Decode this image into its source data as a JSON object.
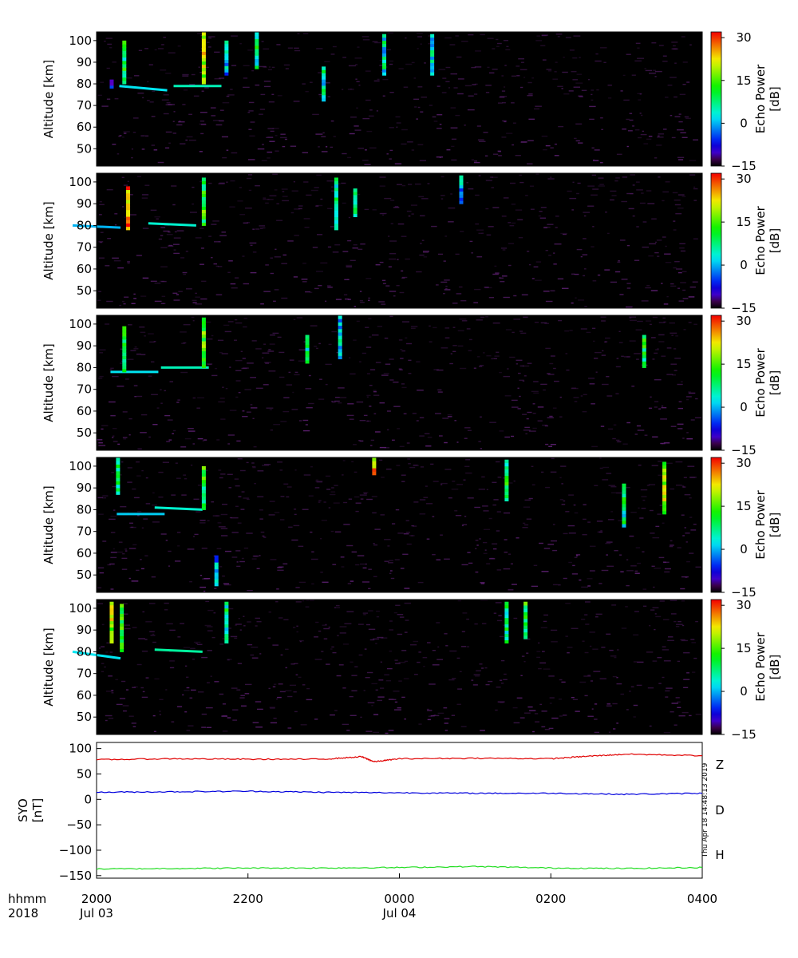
{
  "chart_data": [
    {
      "type": "heatmap",
      "panel": 1,
      "ylabel": "Altitude [km]",
      "yticks": [
        50,
        60,
        70,
        80,
        90,
        100
      ],
      "ylim": [
        42,
        104
      ],
      "colorbar": {
        "label_line1": "Echo Power",
        "label_line2": "[dB]",
        "ticks": [
          -15,
          0,
          15,
          30
        ],
        "range": [
          -15,
          32
        ]
      },
      "echo_layers": [
        {
          "time": "2037",
          "alt_start": 79,
          "alt_end": 77,
          "power_db": 2
        },
        {
          "time": "2120",
          "alt_start": 79,
          "alt_end": 79,
          "power_db": 5
        }
      ],
      "columns": [
        {
          "time": "2012",
          "alt_min": 78,
          "alt_max": 82,
          "power_db": -2
        },
        {
          "time": "2022",
          "alt_min": 80,
          "alt_max": 100,
          "power_db": 12
        },
        {
          "time": "2125",
          "alt_min": 80,
          "alt_max": 104,
          "power_db": 22
        },
        {
          "time": "2143",
          "alt_min": 84,
          "alt_max": 100,
          "power_db": 3
        },
        {
          "time": "2207",
          "alt_min": 87,
          "alt_max": 104,
          "power_db": 10
        },
        {
          "time": "2300",
          "alt_min": 72,
          "alt_max": 88,
          "power_db": 8
        },
        {
          "time": "2348",
          "alt_min": 84,
          "alt_max": 103,
          "power_db": 7
        },
        {
          "time": "0026",
          "alt_min": 84,
          "alt_max": 103,
          "power_db": 6
        }
      ]
    },
    {
      "type": "heatmap",
      "panel": 2,
      "ylabel": "Altitude [km]",
      "yticks": [
        50,
        60,
        70,
        80,
        90,
        100
      ],
      "ylim": [
        42,
        104
      ],
      "colorbar": {
        "label_line1": "Echo Power",
        "label_line2": "[dB]",
        "ticks": [
          -15,
          0,
          15,
          30
        ],
        "range": [
          -15,
          32
        ]
      },
      "echo_layers": [
        {
          "time": "2000",
          "alt_start": 80,
          "alt_end": 79,
          "power_db": 0
        },
        {
          "time": "2100",
          "alt_start": 81,
          "alt_end": 80,
          "power_db": 4
        }
      ],
      "columns": [
        {
          "time": "2025",
          "alt_min": 78,
          "alt_max": 98,
          "power_db": 29
        },
        {
          "time": "2125",
          "alt_min": 80,
          "alt_max": 102,
          "power_db": 15
        },
        {
          "time": "2310",
          "alt_min": 78,
          "alt_max": 102,
          "power_db": 8
        },
        {
          "time": "2325",
          "alt_min": 84,
          "alt_max": 97,
          "power_db": 12
        },
        {
          "time": "0049",
          "alt_min": 90,
          "alt_max": 103,
          "power_db": 4
        }
      ]
    },
    {
      "type": "heatmap",
      "panel": 3,
      "ylabel": "Altitude [km]",
      "yticks": [
        50,
        60,
        70,
        80,
        90,
        100
      ],
      "ylim": [
        42,
        104
      ],
      "colorbar": {
        "label_line1": "Echo Power",
        "label_line2": "[dB]",
        "ticks": [
          -15,
          0,
          15,
          30
        ],
        "range": [
          -15,
          32
        ]
      },
      "echo_layers": [
        {
          "time": "2030",
          "alt_start": 78,
          "alt_end": 78,
          "power_db": 2
        },
        {
          "time": "2110",
          "alt_start": 80,
          "alt_end": 80,
          "power_db": 5
        }
      ],
      "columns": [
        {
          "time": "2022",
          "alt_min": 78,
          "alt_max": 99,
          "power_db": 12
        },
        {
          "time": "2125",
          "alt_min": 80,
          "alt_max": 103,
          "power_db": 18
        },
        {
          "time": "2247",
          "alt_min": 82,
          "alt_max": 95,
          "power_db": 10
        },
        {
          "time": "2313",
          "alt_min": 84,
          "alt_max": 104,
          "power_db": 4
        },
        {
          "time": "0314",
          "alt_min": 80,
          "alt_max": 95,
          "power_db": 12
        }
      ]
    },
    {
      "type": "heatmap",
      "panel": 4,
      "ylabel": "Altitude [km]",
      "yticks": [
        50,
        60,
        70,
        80,
        90,
        100
      ],
      "ylim": [
        42,
        104
      ],
      "colorbar": {
        "label_line1": "Echo Power",
        "label_line2": "[dB]",
        "ticks": [
          -15,
          0,
          15,
          30
        ],
        "range": [
          -15,
          32
        ]
      },
      "echo_layers": [
        {
          "time": "2035",
          "alt_start": 78,
          "alt_end": 78,
          "power_db": 1
        },
        {
          "time": "2105",
          "alt_start": 81,
          "alt_end": 80,
          "power_db": 4
        }
      ],
      "columns": [
        {
          "time": "2017",
          "alt_min": 87,
          "alt_max": 104,
          "power_db": 12
        },
        {
          "time": "2125",
          "alt_min": 80,
          "alt_max": 100,
          "power_db": 14
        },
        {
          "time": "2135",
          "alt_min": 45,
          "alt_max": 59,
          "power_db": 2
        },
        {
          "time": "2340",
          "alt_min": 96,
          "alt_max": 104,
          "power_db": 26
        },
        {
          "time": "0125",
          "alt_min": 84,
          "alt_max": 103,
          "power_db": 12
        },
        {
          "time": "0258",
          "alt_min": 72,
          "alt_max": 92,
          "power_db": 10
        },
        {
          "time": "0330",
          "alt_min": 78,
          "alt_max": 102,
          "power_db": 20
        }
      ]
    },
    {
      "type": "heatmap",
      "panel": 5,
      "ylabel": "Altitude [km]",
      "yticks": [
        50,
        60,
        70,
        80,
        90,
        100
      ],
      "ylim": [
        42,
        104
      ],
      "colorbar": {
        "label_line1": "Echo Power",
        "label_line2": "[dB]",
        "ticks": [
          -15,
          0,
          15,
          30
        ],
        "range": [
          -15,
          32
        ]
      },
      "echo_layers": [
        {
          "time": "2000",
          "alt_start": 80,
          "alt_end": 77,
          "power_db": 2
        },
        {
          "time": "2105",
          "alt_start": 81,
          "alt_end": 80,
          "power_db": 6
        }
      ],
      "columns": [
        {
          "time": "2012",
          "alt_min": 84,
          "alt_max": 103,
          "power_db": 22
        },
        {
          "time": "2020",
          "alt_min": 80,
          "alt_max": 102,
          "power_db": 14
        },
        {
          "time": "2143",
          "alt_min": 84,
          "alt_max": 103,
          "power_db": 10
        },
        {
          "time": "0125",
          "alt_min": 84,
          "alt_max": 103,
          "power_db": 10
        },
        {
          "time": "0140",
          "alt_min": 86,
          "alt_max": 103,
          "power_db": 14
        }
      ]
    },
    {
      "type": "line",
      "panel": 6,
      "ylabel_line1": "SYO",
      "ylabel_line2": "[nT]",
      "ylim": [
        -155,
        112
      ],
      "yticks": [
        100,
        50,
        0,
        -50,
        -100,
        -150
      ],
      "timestamp": "Thu Apr 18 14:48:13 2019",
      "series": [
        {
          "name": "Z",
          "color": "#e00000",
          "points": [
            [
              "2000",
              78
            ],
            [
              "2100",
              80
            ],
            [
              "2200",
              79
            ],
            [
              "2300",
              79
            ],
            [
              "2330",
              84
            ],
            [
              "2340",
              74
            ],
            [
              "0000",
              80
            ],
            [
              "0100",
              81
            ],
            [
              "0200",
              80
            ],
            [
              "0230",
              85
            ],
            [
              "0300",
              89
            ],
            [
              "0400",
              86
            ]
          ]
        },
        {
          "name": "D",
          "color": "#22dd22",
          "points": [
            [
              "2000",
              -137
            ],
            [
              "2100",
              -136
            ],
            [
              "2200",
              -135
            ],
            [
              "2300",
              -135
            ],
            [
              "0000",
              -134
            ],
            [
              "0100",
              -132
            ],
            [
              "0200",
              -135
            ],
            [
              "0300",
              -136
            ],
            [
              "0400",
              -134
            ]
          ]
        },
        {
          "name": "H",
          "color": "#0000dd",
          "points": [
            [
              "2000",
              14
            ],
            [
              "2100",
              15
            ],
            [
              "2200",
              16
            ],
            [
              "2300",
              14
            ],
            [
              "0000",
              13
            ],
            [
              "0100",
              12
            ],
            [
              "0200",
              12
            ],
            [
              "0300",
              10
            ],
            [
              "0400",
              12
            ]
          ]
        }
      ]
    }
  ],
  "xaxis": {
    "label_line1": "hhmm",
    "label_line2": "2018",
    "ticks": [
      "2000",
      "2200",
      "0000",
      "0200",
      "0400"
    ],
    "dates": [
      {
        "at": "2000",
        "text": "Jul 03"
      },
      {
        "at": "0000",
        "text": "Jul 04"
      }
    ]
  },
  "colors": {
    "plot_background": "#000000",
    "noise": "#5a1f6e"
  }
}
